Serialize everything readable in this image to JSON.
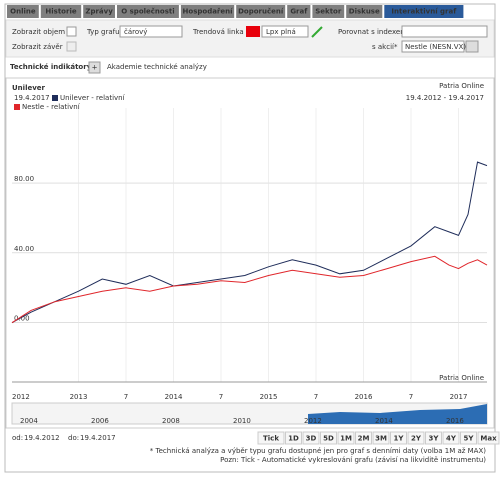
{
  "tabs": [
    "Online",
    "Historie",
    "Zprávy",
    "O společnosti",
    "Hospodaření",
    "Doporučení",
    "Graf",
    "Sektor",
    "Diskuse",
    "Interaktivní graf"
  ],
  "controls": {
    "volume": "Zobrazit objem",
    "close": "Zobrazit závěr",
    "chart_type_label": "Typ grafu*",
    "chart_type": "čárový",
    "trend_label": "Trendová linka",
    "trend_style": "Lpx plná",
    "compare_index": "Porovnat s indexem*",
    "compare_stock": "s akcií*",
    "stock_value": "Nestle (NESN.VX) Vi"
  },
  "indicators": {
    "label": "Technické indikátory*:",
    "button": "+",
    "link": "Akademie technické analýzy"
  },
  "chart_data": {
    "type": "line",
    "title": "Unilever",
    "source": "Patria Online",
    "source_bottom": "Patria Online",
    "date": "19.4.2017",
    "range": "19.4.2012 - 19.4.2017",
    "x_start_label": "2012",
    "x": [
      2012.3,
      2012.5,
      2012.75,
      2013,
      2013.25,
      2013.5,
      2013.75,
      2014,
      2014.25,
      2014.5,
      2014.75,
      2015,
      2015.25,
      2015.5,
      2015.75,
      2016,
      2016.25,
      2016.5,
      2016.75,
      2016.9,
      2017,
      2017.1,
      2017.2,
      2017.3
    ],
    "series": [
      {
        "name": "Unilever - relativní",
        "color": "#1f2d5a",
        "values": [
          0,
          6,
          12,
          18,
          25,
          22,
          27,
          21,
          23,
          25,
          27,
          32,
          36,
          33,
          28,
          30,
          37,
          44,
          55,
          52,
          50,
          62,
          92,
          90
        ]
      },
      {
        "name": "Nestle - relativní",
        "color": "#e0262b",
        "values": [
          0,
          7,
          12,
          15,
          18,
          20,
          18,
          21,
          22,
          24,
          23,
          27,
          30,
          28,
          26,
          27,
          31,
          35,
          38,
          33,
          31,
          34,
          36,
          33
        ]
      }
    ],
    "xlim": [
      2012.3,
      2017.3
    ],
    "xticks": [
      2013,
      {
        "value": 2013.5,
        "label": "7"
      },
      2014,
      {
        "value": 2014.5,
        "label": "7"
      },
      2015,
      {
        "value": 2015.5,
        "label": "7"
      },
      2016,
      {
        "value": 2016.5,
        "label": "7"
      },
      2017
    ],
    "ylim": [
      -34,
      123
    ],
    "yticks": [
      {
        "value": 0,
        "label": "0.00"
      },
      {
        "value": 40,
        "label": "40.00"
      },
      {
        "value": 80,
        "label": "80.00"
      }
    ],
    "grid": true
  },
  "navigator": [
    "2004",
    "2006",
    "2008",
    "2010",
    "2012",
    "2014",
    "2016"
  ],
  "footer": {
    "from_label": "od:",
    "from": "19.4.2012",
    "to_label": "do:",
    "to": "19.4.2017",
    "buttons": [
      "Tick",
      "1D",
      "3D",
      "5D",
      "1M",
      "2M",
      "3M",
      "1Y",
      "2Y",
      "3Y",
      "4Y",
      "5Y",
      "Max"
    ],
    "note1": "* Technická analýza a výběr typu grafu dostupné jen pro graf s denními daty (volba 1M až MAX)",
    "note2": "Pozn: Tick - Automatické vykreslování grafu (závisí na likviditě instrumentu)"
  }
}
